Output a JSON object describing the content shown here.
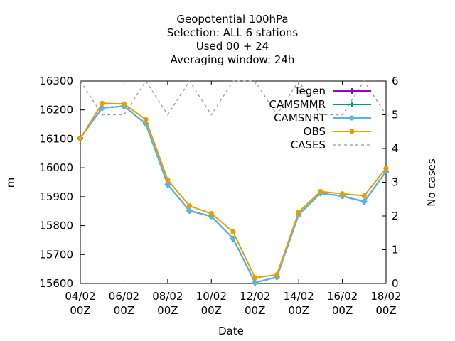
{
  "chart_data": {
    "type": "line",
    "title_lines": [
      "Geopotential 100hPa",
      "Selection: ALL      6 stations",
      "Used  00 + 24",
      "Averaging window: 24h"
    ],
    "xlabel": "Date",
    "ylabel": "m",
    "y2label": "No cases",
    "xlim": [
      4,
      18
    ],
    "ylim": [
      15600,
      16300
    ],
    "y2lim": [
      0,
      6
    ],
    "x_ticks": [
      {
        "x": 4,
        "line1": "04/02",
        "line2": "00Z"
      },
      {
        "x": 6,
        "line1": "06/02",
        "line2": "00Z"
      },
      {
        "x": 8,
        "line1": "08/02",
        "line2": "00Z"
      },
      {
        "x": 10,
        "line1": "10/02",
        "line2": "00Z"
      },
      {
        "x": 12,
        "line1": "12/02",
        "line2": "00Z"
      },
      {
        "x": 14,
        "line1": "14/02",
        "line2": "00Z"
      },
      {
        "x": 16,
        "line1": "16/02",
        "line2": "00Z"
      },
      {
        "x": 18,
        "line1": "18/02",
        "line2": "00Z"
      }
    ],
    "y_ticks": [
      "15600",
      "15700",
      "15800",
      "15900",
      "16000",
      "16100",
      "16200",
      "16300"
    ],
    "y2_ticks": [
      "0",
      "1",
      "2",
      "3",
      "4",
      "5",
      "6"
    ],
    "legend_position": "top-right",
    "x": [
      4,
      5,
      6,
      7,
      8,
      9,
      10,
      11,
      12,
      13,
      14,
      15,
      16,
      17,
      18
    ],
    "series": [
      {
        "name": "Tegen",
        "axis": "y",
        "color": "#9400d3",
        "marker": "plus",
        "dashed": false,
        "values": [
          16103,
          16207,
          16213,
          16152,
          15942,
          15851,
          15832,
          15755,
          15603,
          15622,
          15838,
          15912,
          15902,
          15883,
          15987
        ]
      },
      {
        "name": "CAMSMMR",
        "axis": "y",
        "color": "#009e73",
        "marker": "plus",
        "dashed": false,
        "values": [
          16103,
          16207,
          16213,
          16152,
          15942,
          15851,
          15832,
          15755,
          15603,
          15622,
          15838,
          15912,
          15902,
          15883,
          15987
        ]
      },
      {
        "name": "CAMSNRT",
        "axis": "y",
        "color": "#56b4e9",
        "marker": "dot",
        "dashed": false,
        "values": [
          16103,
          16207,
          16213,
          16152,
          15942,
          15851,
          15832,
          15755,
          15603,
          15622,
          15838,
          15912,
          15902,
          15883,
          15987
        ]
      },
      {
        "name": "OBS",
        "axis": "y",
        "color": "#e69f00",
        "marker": "dot",
        "dashed": false,
        "values": [
          16101,
          16223,
          16221,
          16167,
          15958,
          15868,
          15842,
          15778,
          15620,
          15630,
          15847,
          15918,
          15910,
          15903,
          15998
        ]
      },
      {
        "name": "CASES",
        "axis": "y2",
        "color": "#999999",
        "marker": "none",
        "dashed": true,
        "values": [
          6,
          5,
          5,
          6,
          5,
          6,
          5,
          6,
          6,
          5,
          6,
          5,
          5,
          6,
          5
        ]
      }
    ]
  }
}
